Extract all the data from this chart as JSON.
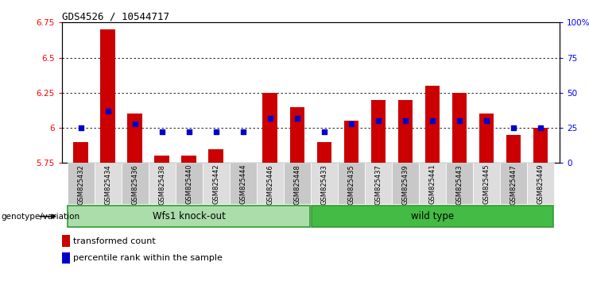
{
  "title": "GDS4526 / 10544717",
  "samples": [
    "GSM825432",
    "GSM825434",
    "GSM825436",
    "GSM825438",
    "GSM825440",
    "GSM825442",
    "GSM825444",
    "GSM825446",
    "GSM825448",
    "GSM825433",
    "GSM825435",
    "GSM825437",
    "GSM825439",
    "GSM825441",
    "GSM825443",
    "GSM825445",
    "GSM825447",
    "GSM825449"
  ],
  "transformed_count": [
    5.9,
    6.7,
    6.1,
    5.8,
    5.8,
    5.85,
    5.75,
    6.25,
    6.15,
    5.9,
    6.05,
    6.2,
    6.2,
    6.3,
    6.25,
    6.1,
    5.95,
    6.0
  ],
  "percentile_rank": [
    25,
    37,
    28,
    22,
    22,
    22,
    22,
    32,
    32,
    22,
    28,
    30,
    30,
    30,
    30,
    30,
    25,
    25
  ],
  "base_value": 5.75,
  "ylim_left": [
    5.75,
    6.75
  ],
  "ylim_right": [
    0,
    100
  ],
  "yticks_left": [
    5.75,
    6.0,
    6.25,
    6.5,
    6.75
  ],
  "yticks_right": [
    0,
    25,
    50,
    75,
    100
  ],
  "ytick_labels_left": [
    "5.75",
    "6",
    "6.25",
    "6.5",
    "6.75"
  ],
  "ytick_labels_right": [
    "0",
    "25",
    "50",
    "75",
    "100%"
  ],
  "grid_lines": [
    6.0,
    6.25,
    6.5
  ],
  "group1_label": "Wfs1 knock-out",
  "group2_label": "wild type",
  "group1_count": 9,
  "group2_count": 9,
  "group1_color": "#AAEEA A",
  "group2_color": "#44DD44",
  "bar_color": "#CC0000",
  "dot_color": "#0000CC",
  "legend_bar": "transformed count",
  "legend_dot": "percentile rank within the sample",
  "genotype_label": "genotype/variation",
  "tick_bg_even": "#C8C8C8",
  "tick_bg_odd": "#DDDDDD"
}
